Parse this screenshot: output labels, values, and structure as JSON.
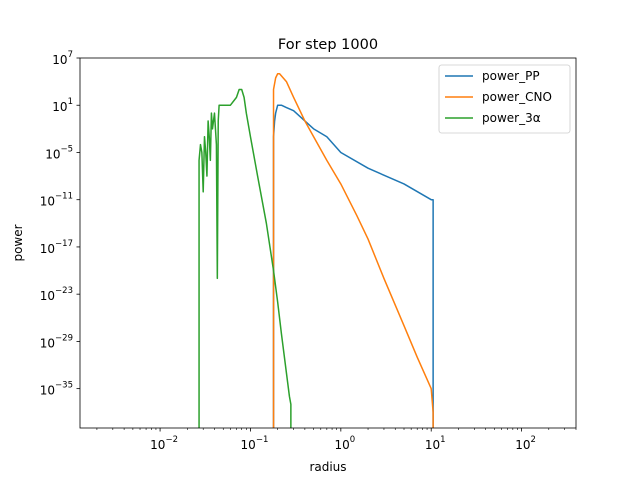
{
  "chart_data": {
    "type": "line",
    "title": "For step 1000",
    "xlabel": "radius",
    "ylabel": "power",
    "xscale": "log",
    "yscale": "log",
    "xlim": [
      0.0013,
      400
    ],
    "ylim": [
      1e-40,
      10000000.0
    ],
    "x_ticks": [
      {
        "mantissa": "10",
        "exp": "−2",
        "value": 0.01
      },
      {
        "mantissa": "10",
        "exp": "−1",
        "value": 0.1
      },
      {
        "mantissa": "10",
        "exp": "0",
        "value": 1
      },
      {
        "mantissa": "10",
        "exp": "1",
        "value": 10
      },
      {
        "mantissa": "10",
        "exp": "2",
        "value": 100
      }
    ],
    "y_ticks": [
      {
        "mantissa": "10",
        "exp": "7",
        "value": 10000000.0
      },
      {
        "mantissa": "10",
        "exp": "1",
        "value": 10
      },
      {
        "mantissa": "10",
        "exp": "−5",
        "value": 1e-05
      },
      {
        "mantissa": "10",
        "exp": "−11",
        "value": 1e-11
      },
      {
        "mantissa": "10",
        "exp": "−17",
        "value": 1e-17
      },
      {
        "mantissa": "10",
        "exp": "−23",
        "value": 1e-23
      },
      {
        "mantissa": "10",
        "exp": "−29",
        "value": 1e-29
      },
      {
        "mantissa": "10",
        "exp": "−35",
        "value": 1e-35
      }
    ],
    "legend_position": "top-right",
    "series": [
      {
        "name": "power_PP",
        "color": "#1f77b4",
        "x": [
          0.18,
          0.18,
          0.185,
          0.19,
          0.2,
          0.22,
          0.25,
          0.3,
          0.4,
          0.5,
          0.7,
          1.0,
          2.0,
          5.0,
          10.0,
          10.5,
          10.5
        ],
        "y": [
          1e-40,
          0.001,
          0.1,
          1.0,
          10.0,
          10.0,
          5.0,
          2.0,
          0.1,
          0.01,
          0.001,
          1e-05,
          1e-07,
          1e-09,
          1e-11,
          1e-11,
          1e-40
        ]
      },
      {
        "name": "power_CNO",
        "color": "#ff7f0e",
        "x": [
          0.18,
          0.18,
          0.19,
          0.2,
          0.21,
          0.23,
          0.25,
          0.3,
          0.4,
          0.5,
          0.7,
          1.0,
          1.5,
          2.0,
          3.0,
          5.0,
          7.0,
          10.0,
          10.5,
          10.5
        ],
        "y": [
          1e-40,
          1000.0,
          30000.0,
          100000.0,
          100000.0,
          30000.0,
          10000.0,
          100.0,
          0.1,
          0.001,
          1e-06,
          1e-09,
          1e-13,
          1e-16,
          1e-21,
          1e-27,
          1e-31,
          1e-35,
          1e-38,
          1e-40
        ]
      },
      {
        "name": "power_3α",
        "color": "#2ca02c",
        "x": [
          0.027,
          0.027,
          0.028,
          0.029,
          0.03,
          0.031,
          0.032,
          0.033,
          0.034,
          0.035,
          0.036,
          0.037,
          0.038,
          0.04,
          0.042,
          0.043,
          0.044,
          0.045,
          0.05,
          0.06,
          0.07,
          0.075,
          0.08,
          0.085,
          0.09,
          0.1,
          0.12,
          0.15,
          0.18,
          0.2,
          0.22,
          0.25,
          0.27,
          0.28,
          0.28
        ],
        "y": [
          1e-40,
          1e-06,
          0.0001,
          1e-05,
          1e-10,
          0.001,
          1e-05,
          1e-08,
          0.1,
          0.001,
          1e-06,
          1.0,
          0.01,
          1.0,
          0.0001,
          1e-21,
          0.1,
          10.0,
          10.0,
          10.0,
          100.0,
          1000.0,
          1000.0,
          100.0,
          1.0,
          0.001,
          1e-08,
          1e-14,
          1e-20,
          1e-24,
          1e-28,
          1e-33,
          1e-36,
          1e-37,
          1e-40
        ]
      }
    ]
  }
}
